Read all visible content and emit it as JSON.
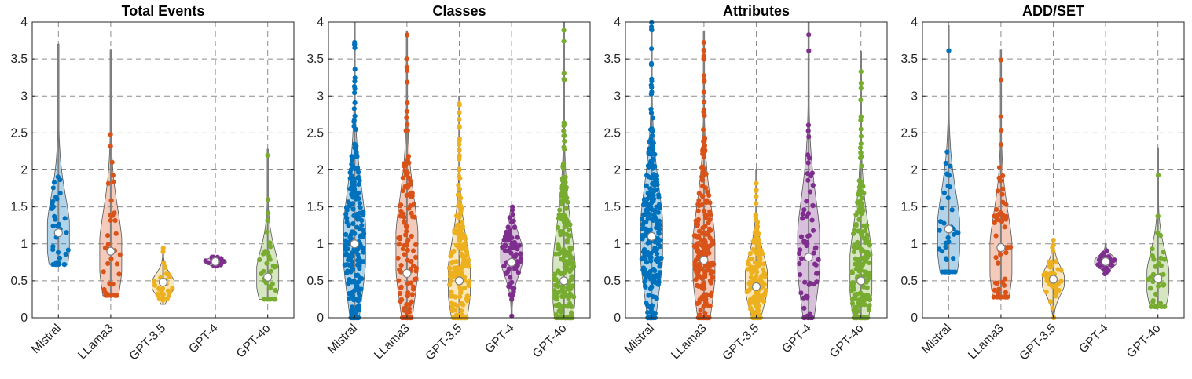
{
  "colors": {
    "Mistral": "#0072BD",
    "LLama3": "#D95319",
    "GPT-3.5": "#EDB120",
    "GPT-4": "#7E2F8E",
    "GPT-4o": "#77AC30"
  },
  "chart_data": [
    {
      "type": "violin",
      "title": "Total Events",
      "categories": [
        "Mistral",
        "LLama3",
        "GPT-3.5",
        "GPT-4",
        "GPT-4o"
      ],
      "ylim": [
        0,
        4
      ],
      "yticks": [
        "0",
        "0.5",
        "1",
        "1.5",
        "2",
        "2.5",
        "3",
        "3.5",
        "4"
      ],
      "grid": true,
      "series": [
        {
          "category": "Mistral",
          "min": 0.72,
          "max": 3.7,
          "median": 1.15,
          "n": 35,
          "peak": 1.1,
          "points_max": 2.86
        },
        {
          "category": "LLama3",
          "min": 0.3,
          "max": 3.62,
          "median": 0.9,
          "n": 35,
          "peak": 0.85
        },
        {
          "category": "GPT-3.5",
          "min": 0.18,
          "max": 0.95,
          "median": 0.48,
          "n": 30,
          "peak": 0.45
        },
        {
          "category": "GPT-4",
          "min": 0.7,
          "max": 0.82,
          "median": 0.76,
          "n": 20,
          "peak": 0.76
        },
        {
          "category": "GPT-4o",
          "min": 0.25,
          "max": 2.28,
          "median": 0.55,
          "n": 35,
          "peak": 0.55
        }
      ]
    },
    {
      "type": "violin",
      "title": "Classes",
      "categories": [
        "Mistral",
        "LLama3",
        "GPT-3.5",
        "GPT-4",
        "GPT-4o"
      ],
      "ylim": [
        0,
        4
      ],
      "yticks": [
        "0",
        "0.5",
        "1",
        "1.5",
        "2",
        "2.5",
        "3",
        "3.5",
        "4"
      ],
      "grid": true,
      "series": [
        {
          "category": "Mistral",
          "min": 0,
          "max": 4,
          "median": 1.0,
          "n": 220,
          "peak": 1.0
        },
        {
          "category": "LLama3",
          "min": 0,
          "max": 3.88,
          "median": 0.6,
          "n": 120,
          "peak": 0.9
        },
        {
          "category": "GPT-3.5",
          "min": 0,
          "max": 3.0,
          "median": 0.5,
          "n": 200,
          "peak": 0.5
        },
        {
          "category": "GPT-4",
          "min": 0,
          "max": 1.5,
          "median": 0.75,
          "n": 80,
          "peak": 0.85
        },
        {
          "category": "GPT-4o",
          "min": 0,
          "max": 4,
          "median": 0.5,
          "n": 240,
          "peak": 0.5
        }
      ]
    },
    {
      "type": "violin",
      "title": "Attributes",
      "categories": [
        "Mistral",
        "LLama3",
        "GPT-3.5",
        "GPT-4",
        "GPT-4o"
      ],
      "ylim": [
        0,
        4
      ],
      "yticks": [
        "0",
        "0.5",
        "1",
        "1.5",
        "2",
        "2.5",
        "3",
        "3.5",
        "4"
      ],
      "grid": true,
      "series": [
        {
          "category": "Mistral",
          "min": 0,
          "max": 4,
          "median": 1.1,
          "n": 260,
          "peak": 1.05
        },
        {
          "category": "LLama3",
          "min": 0,
          "max": 3.88,
          "median": 0.78,
          "n": 230,
          "peak": 0.8
        },
        {
          "category": "GPT-3.5",
          "min": 0,
          "max": 2.0,
          "median": 0.42,
          "n": 150,
          "peak": 0.5
        },
        {
          "category": "GPT-4",
          "min": 0,
          "max": 4,
          "median": 0.82,
          "n": 70,
          "peak": 0.9
        },
        {
          "category": "GPT-4o",
          "min": 0,
          "max": 3.6,
          "median": 0.5,
          "n": 220,
          "peak": 0.6
        }
      ]
    },
    {
      "type": "violin",
      "title": "ADD/SET",
      "categories": [
        "Mistral",
        "LLama3",
        "GPT-3.5",
        "GPT-4",
        "GPT-4o"
      ],
      "ylim": [
        0,
        4
      ],
      "yticks": [
        "0",
        "0.5",
        "1",
        "1.5",
        "2",
        "2.5",
        "3",
        "3.5",
        "4"
      ],
      "grid": true,
      "series": [
        {
          "category": "Mistral",
          "min": 0.62,
          "max": 3.95,
          "median": 1.2,
          "n": 45,
          "peak": 1.1
        },
        {
          "category": "LLama3",
          "min": 0.28,
          "max": 3.62,
          "median": 0.95,
          "n": 55,
          "peak": 0.8
        },
        {
          "category": "GPT-3.5",
          "min": 0,
          "max": 1.05,
          "median": 0.52,
          "n": 40,
          "peak": 0.5
        },
        {
          "category": "GPT-4",
          "min": 0.58,
          "max": 1.0,
          "median": 0.76,
          "n": 30,
          "peak": 0.76
        },
        {
          "category": "GPT-4o",
          "min": 0.15,
          "max": 2.3,
          "median": 0.53,
          "n": 40,
          "peak": 0.5
        }
      ]
    }
  ]
}
